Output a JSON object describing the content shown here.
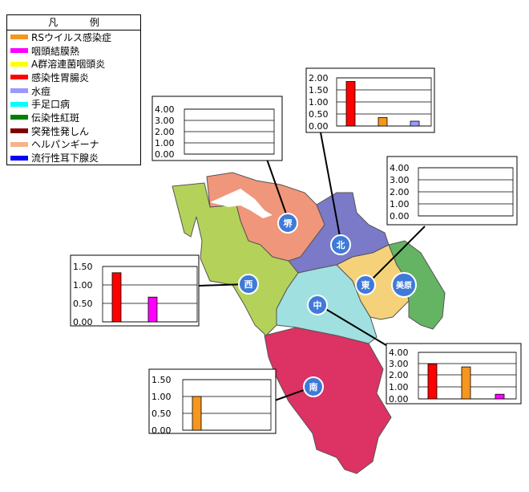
{
  "legend": {
    "title_left": "凡",
    "title_right": "例",
    "items": [
      {
        "label": "RSウイルス感染症",
        "color": "#f5961e"
      },
      {
        "label": "咽頭結膜熱",
        "color": "#ff00ff"
      },
      {
        "label": "A群溶連菌咽頭炎",
        "color": "#ffff00"
      },
      {
        "label": "感染性胃腸炎",
        "color": "#ff0000"
      },
      {
        "label": "水痘",
        "color": "#9999ff"
      },
      {
        "label": "手足口病",
        "color": "#00ffff"
      },
      {
        "label": "伝染性紅斑",
        "color": "#008000"
      },
      {
        "label": "突発性発しん",
        "color": "#800000"
      },
      {
        "label": "ヘルパンギーナ",
        "color": "#f5b48c"
      },
      {
        "label": "流行性耳下腺炎",
        "color": "#0000ff"
      }
    ]
  },
  "wards": [
    {
      "label": "堺",
      "color": "#f0967a"
    },
    {
      "label": "北",
      "color": "#7a7ac8"
    },
    {
      "label": "西",
      "color": "#b4d25a"
    },
    {
      "label": "東",
      "color": "#f5d27a"
    },
    {
      "label": "美原",
      "color": "#64b464"
    },
    {
      "label": "中",
      "color": "#a0e0e0"
    },
    {
      "label": "南",
      "color": "#dc3264"
    }
  ],
  "chart_data": [
    {
      "type": "bar",
      "ward": "堺",
      "yticks": [
        "4.00",
        "3.00",
        "2.00",
        "1.00",
        "0.00"
      ],
      "ylim": [
        0,
        4
      ],
      "series": []
    },
    {
      "type": "bar",
      "ward": "北",
      "yticks": [
        "2.00",
        "1.50",
        "1.00",
        "0.50",
        "0.00"
      ],
      "ylim": [
        0,
        2
      ],
      "series": [
        {
          "disease": "感染性胃腸炎",
          "color": "#ff0000",
          "value": 1.85
        },
        {
          "disease": "RSウイルス感染症",
          "color": "#f5961e",
          "value": 0.35
        },
        {
          "disease": "水痘",
          "color": "#9999ff",
          "value": 0.2
        }
      ]
    },
    {
      "type": "bar",
      "ward": "東",
      "yticks": [
        "4.00",
        "3.00",
        "2.00",
        "1.00",
        "0.00"
      ],
      "ylim": [
        0,
        4
      ],
      "series": []
    },
    {
      "type": "bar",
      "ward": "西",
      "yticks": [
        "1.50",
        "1.00",
        "0.50",
        "0.00"
      ],
      "ylim": [
        0,
        1.5
      ],
      "series": [
        {
          "disease": "感染性胃腸炎",
          "color": "#ff0000",
          "value": 1.33
        },
        {
          "disease": "咽頭結膜熱",
          "color": "#ff00ff",
          "value": 0.67
        }
      ]
    },
    {
      "type": "bar",
      "ward": "中",
      "yticks": [
        "4.00",
        "3.00",
        "2.00",
        "1.00",
        "0.00"
      ],
      "ylim": [
        0,
        4
      ],
      "series": [
        {
          "disease": "感染性胃腸炎",
          "color": "#ff0000",
          "value": 3.0
        },
        {
          "disease": "RSウイルス感染症",
          "color": "#f5961e",
          "value": 2.75
        },
        {
          "disease": "咽頭結膜熱",
          "color": "#ff00ff",
          "value": 0.4
        }
      ]
    },
    {
      "type": "bar",
      "ward": "南",
      "yticks": [
        "1.50",
        "1.00",
        "0.50",
        "0.00"
      ],
      "ylim": [
        0,
        1.5
      ],
      "series": [
        {
          "disease": "RSウイルス感染症",
          "color": "#f5961e",
          "value": 1.0
        }
      ]
    }
  ]
}
